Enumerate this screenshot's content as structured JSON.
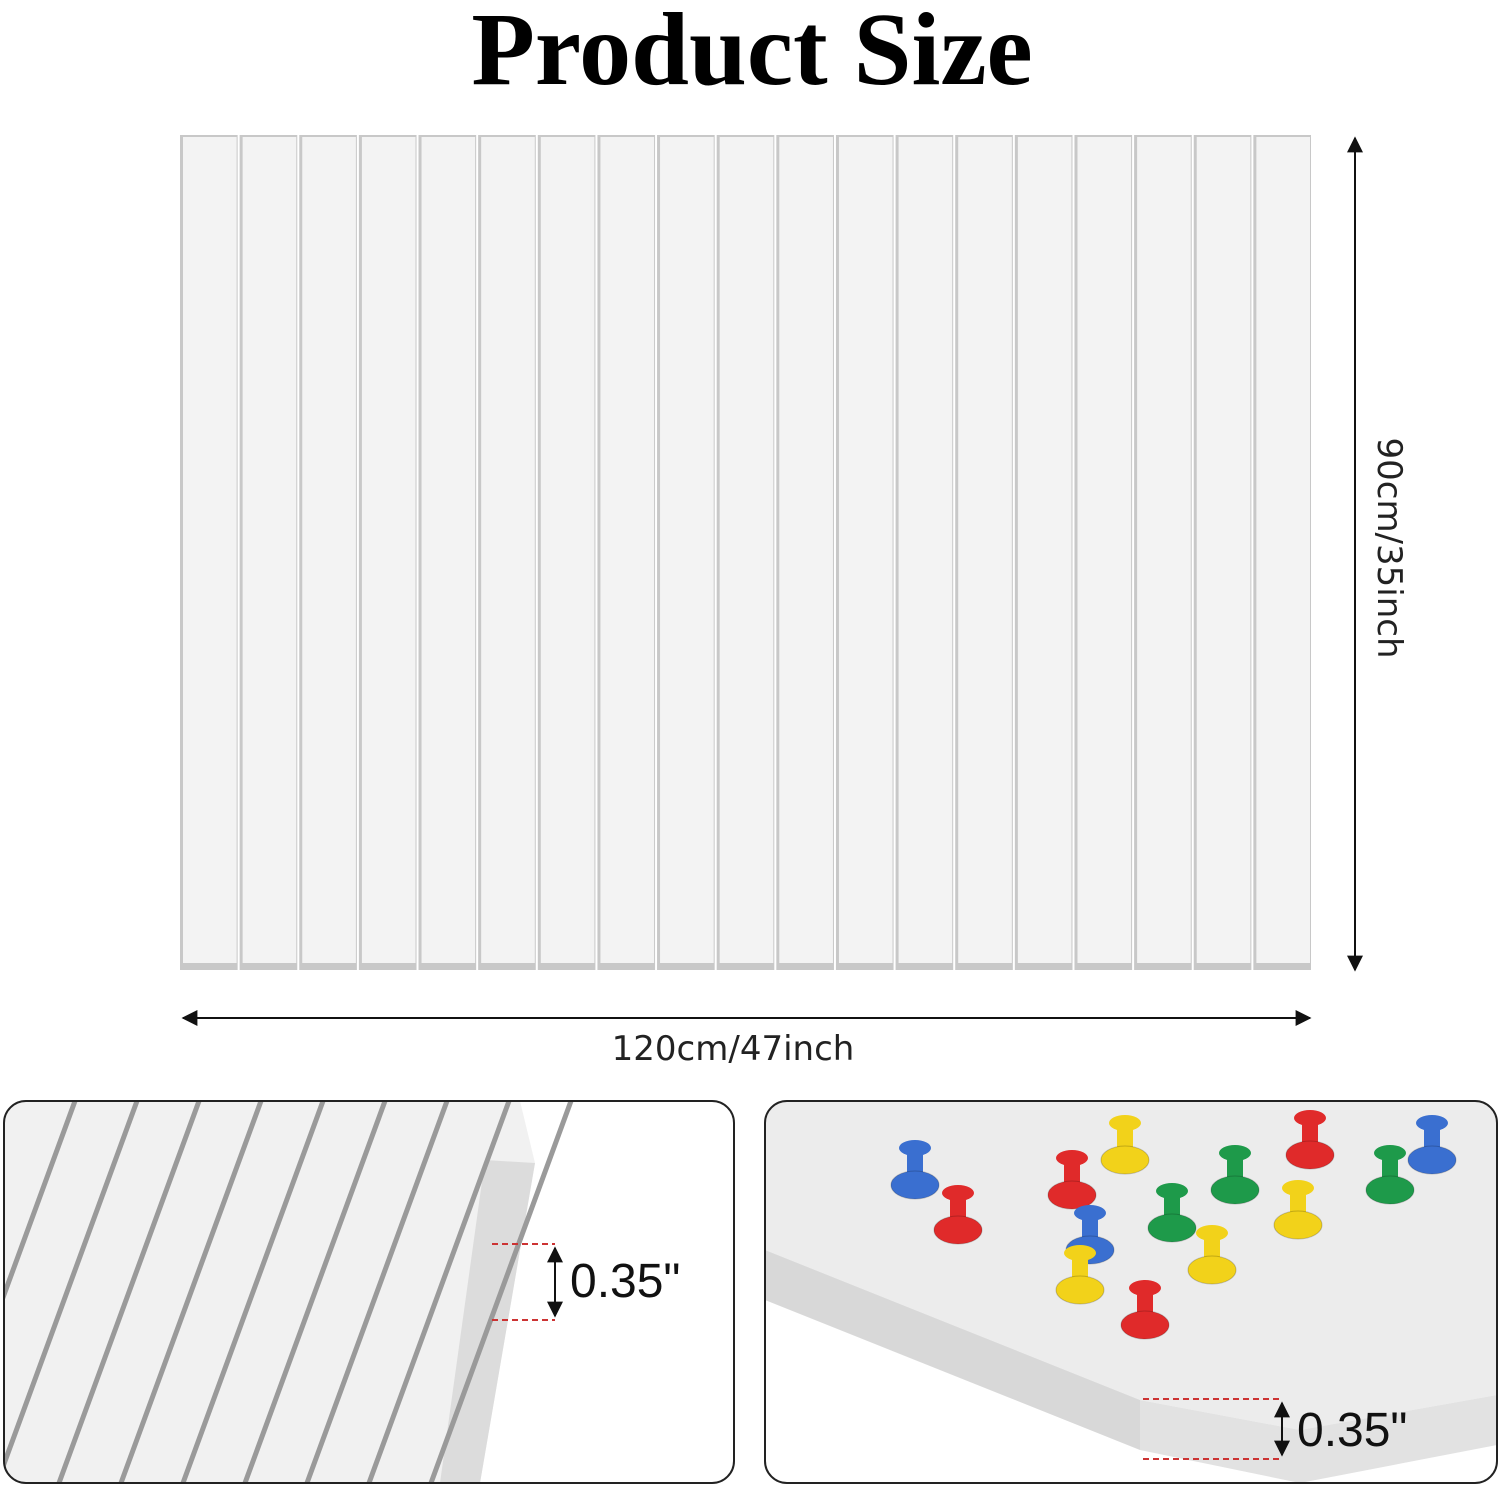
{
  "header": {
    "title": "Product Size"
  },
  "dimensions": {
    "height": "90cm/35inch",
    "width": "120cm/47inch"
  },
  "details": {
    "left_thickness": "0.35\"",
    "right_thickness": "0.35\""
  }
}
